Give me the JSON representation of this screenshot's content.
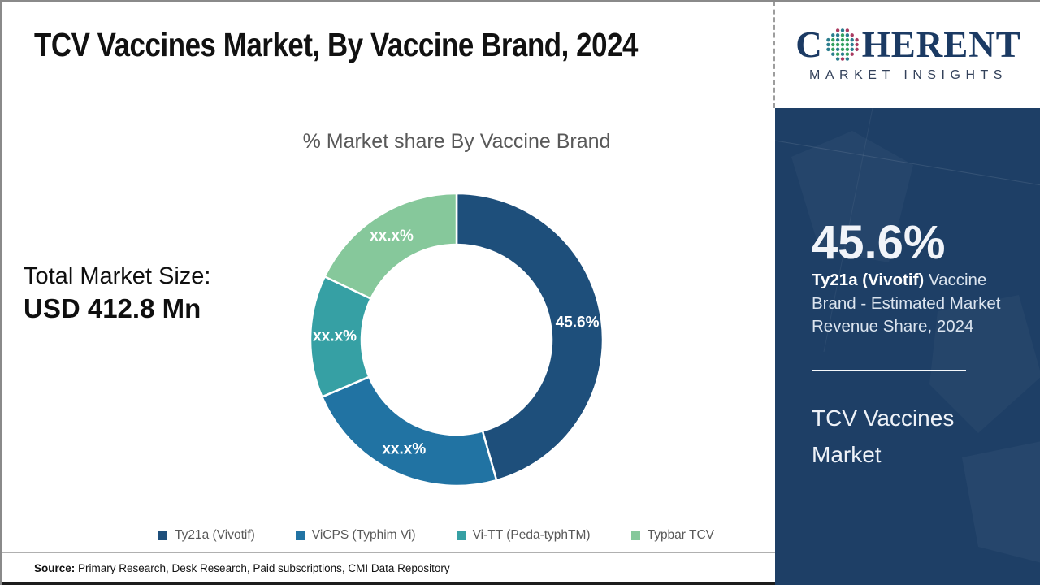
{
  "title": "TCV Vaccines Market, By Vaccine Brand, 2024",
  "logo": {
    "word_start": "C",
    "word_end": "HERENT",
    "subtitle": "MARKET INSIGHTS",
    "globe_colors": {
      "inner": "#35a05f",
      "mid": [
        "#2b7d8e",
        "#35a05f"
      ],
      "outer": [
        "#a93a60",
        "#2b7d8e"
      ]
    }
  },
  "total_market": {
    "label": "Total Market Size:",
    "value": "USD 412.8 Mn"
  },
  "chart_data": {
    "type": "pie",
    "subtype": "donut",
    "title": "% Market share By Vaccine Brand",
    "legend_position": "bottom",
    "start_angle_deg": 0,
    "direction": "clockwise",
    "series": [
      {
        "name": "Ty21a (Vivotif)",
        "value": 45.6,
        "label": "45.6%",
        "color": "#1e4f7b"
      },
      {
        "name": "ViCPS (Typhim Vi)",
        "value": 23.0,
        "label": "xx.x%",
        "color": "#2173a3"
      },
      {
        "name": "Vi-TT (Peda-typhTM)",
        "value": 13.5,
        "label": "xx.x%",
        "color": "#36a0a4"
      },
      {
        "name": "Typbar TCV",
        "value": 17.9,
        "label": "xx.x%",
        "color": "#86c89b"
      }
    ]
  },
  "panel": {
    "bg_color": "#1e3f66",
    "stat_value": "45.6%",
    "stat_bold": "Ty21a (Vivotif)",
    "stat_rest": " Vaccine Brand - Estimated Market Revenue Share, 2024",
    "footer_title": "TCV Vaccines Market"
  },
  "footer": {
    "source_label": "Source:",
    "source_text": " Primary Research, Desk Research, Paid subscriptions, CMI Data Repository"
  }
}
